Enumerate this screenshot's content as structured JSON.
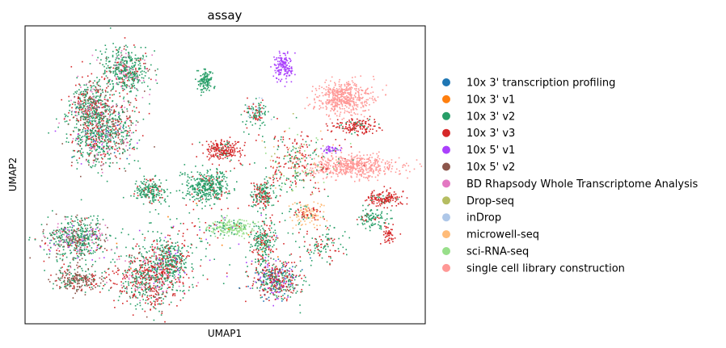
{
  "chart_data": {
    "type": "scatter",
    "title": "assay",
    "xlabel": "UMAP1",
    "ylabel": "UMAP2",
    "grid": false,
    "ticks": "none",
    "legend": {
      "placement": "right",
      "entries": [
        {
          "label": "10x 3' transcription profiling",
          "color": "#1f77b4"
        },
        {
          "label": "10x 3' v1",
          "color": "#ff7f0e"
        },
        {
          "label": "10x 3' v2",
          "color": "#279e68"
        },
        {
          "label": "10x 3' v3",
          "color": "#d62728"
        },
        {
          "label": "10x 5' v1",
          "color": "#aa40fc"
        },
        {
          "label": "10x 5' v2",
          "color": "#8c564b"
        },
        {
          "label": "BD Rhapsody Whole Transcriptome Analysis",
          "color": "#e377c2"
        },
        {
          "label": "Drop-seq",
          "color": "#b5bd61"
        },
        {
          "label": "inDrop",
          "color": "#aec7e8"
        },
        {
          "label": "microwell-seq",
          "color": "#ffbb78"
        },
        {
          "label": "sci-RNA-seq",
          "color": "#98df8a"
        },
        {
          "label": "single cell library construction",
          "color": "#ff9896"
        }
      ]
    }
  }
}
